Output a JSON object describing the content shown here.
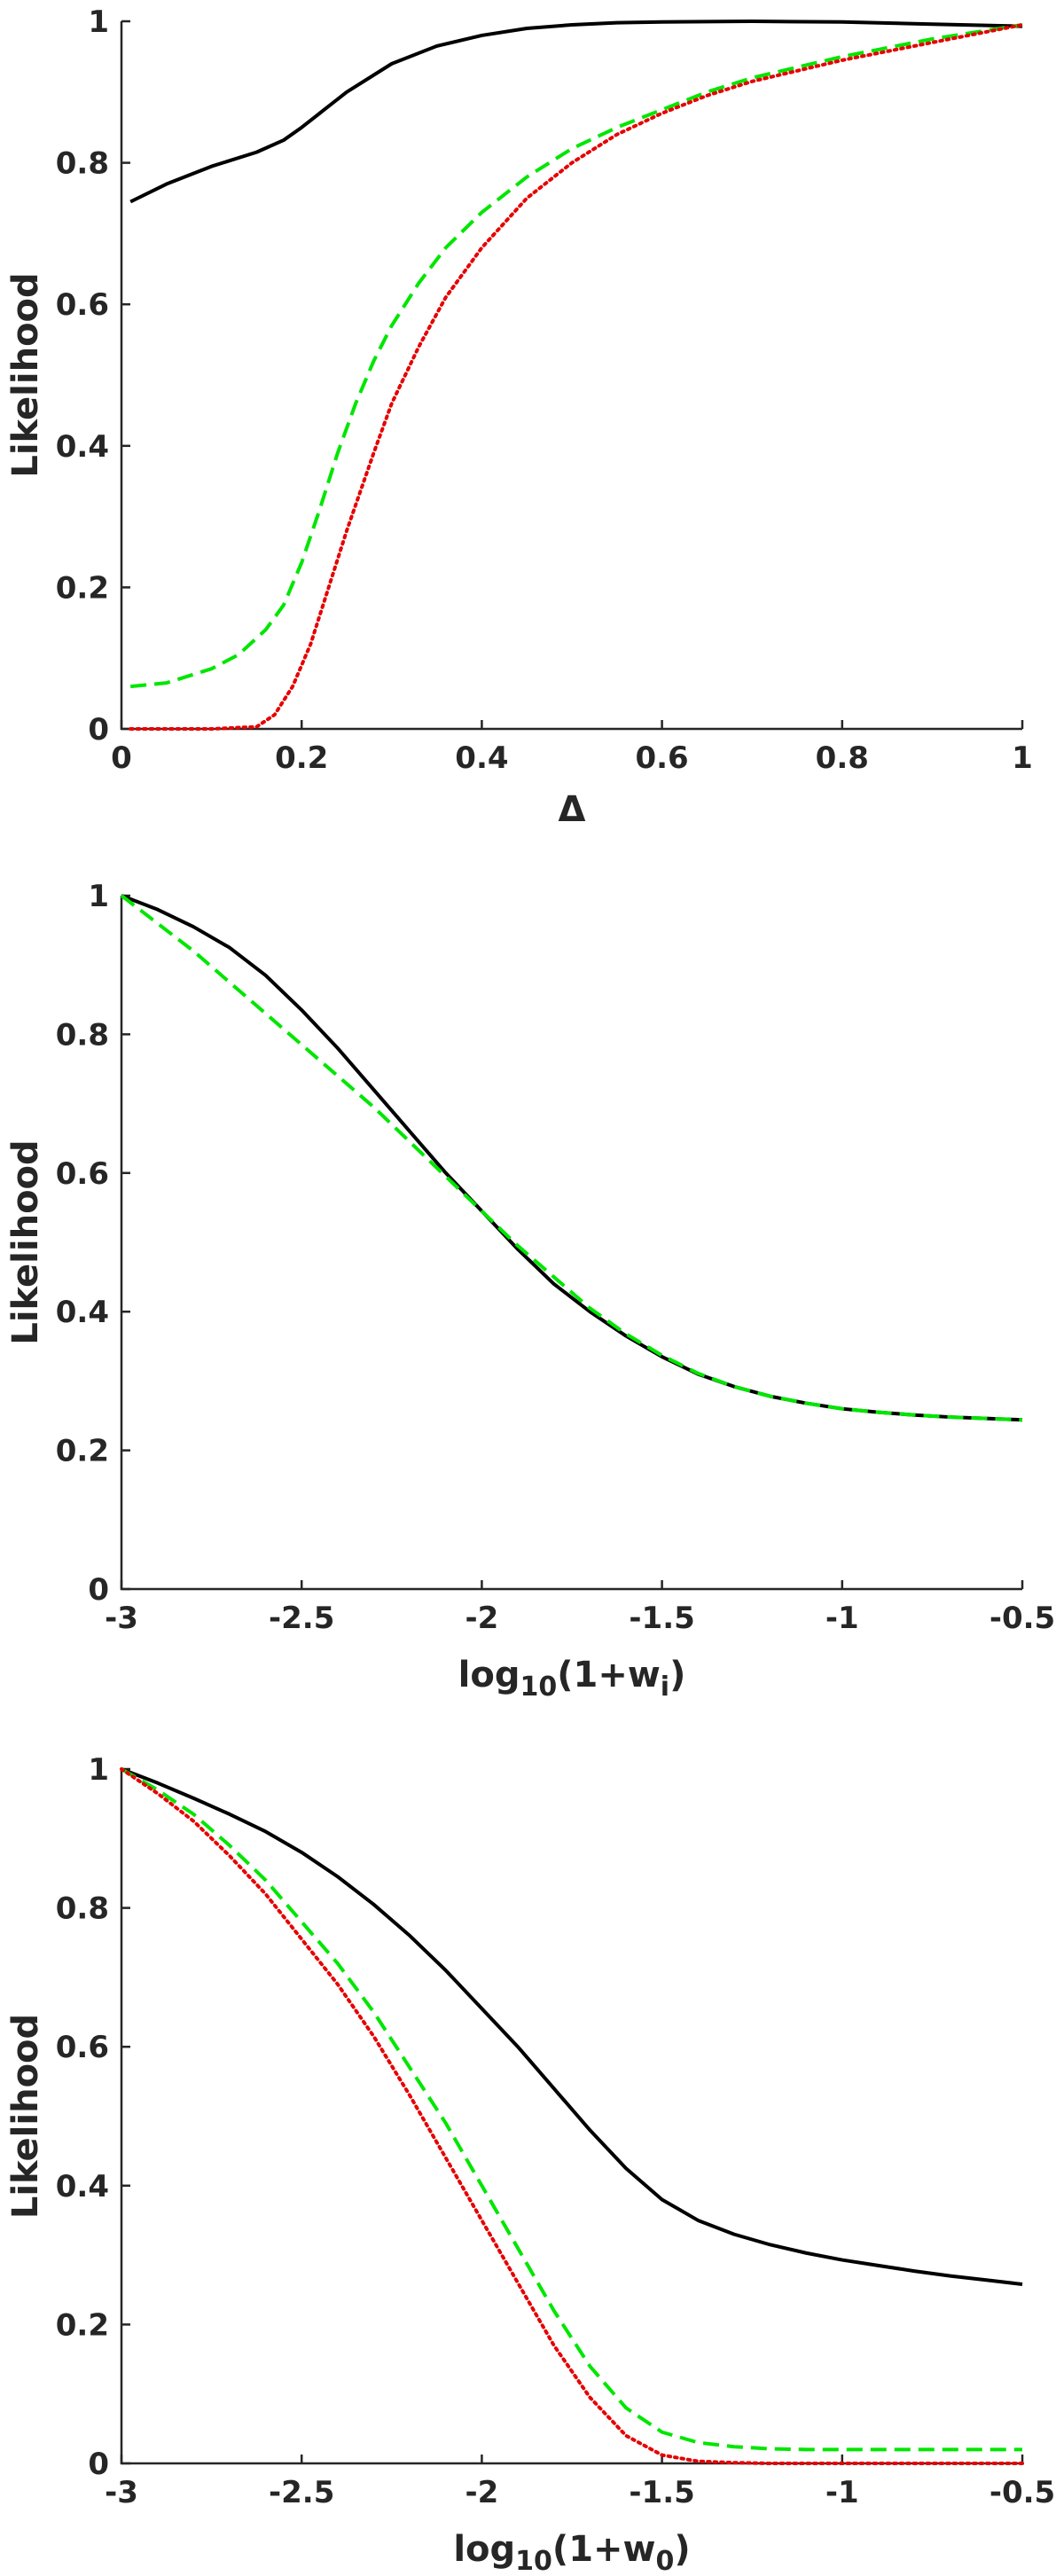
{
  "chart_data": [
    {
      "type": "line",
      "xlabel": "Δ",
      "ylabel": "Likelihood",
      "xlim": [
        0,
        1
      ],
      "ylim": [
        0,
        1
      ],
      "xticks": [
        0,
        0.2,
        0.4,
        0.6,
        0.8,
        1
      ],
      "xtick_labels": [
        "0",
        "0.2",
        "0.4",
        "0.6",
        "0.8",
        "1"
      ],
      "yticks": [
        0,
        0.2,
        0.4,
        0.6,
        0.8,
        1
      ],
      "ytick_labels": [
        "0",
        "0.2",
        "0.4",
        "0.6",
        "0.8",
        "1"
      ],
      "grid": false,
      "series": [
        {
          "style": "solid",
          "color": "#000000",
          "x": [
            0.01,
            0.05,
            0.1,
            0.15,
            0.18,
            0.2,
            0.22,
            0.25,
            0.3,
            0.35,
            0.4,
            0.45,
            0.5,
            0.55,
            0.6,
            0.7,
            0.8,
            0.9,
            1.0
          ],
          "y": [
            0.745,
            0.77,
            0.795,
            0.815,
            0.832,
            0.85,
            0.87,
            0.9,
            0.94,
            0.965,
            0.98,
            0.99,
            0.995,
            0.998,
            0.999,
            1.0,
            0.999,
            0.996,
            0.993
          ]
        },
        {
          "style": "dashed",
          "color": "#00e600",
          "x": [
            0.01,
            0.05,
            0.1,
            0.13,
            0.16,
            0.18,
            0.2,
            0.22,
            0.24,
            0.26,
            0.28,
            0.3,
            0.33,
            0.36,
            0.4,
            0.45,
            0.5,
            0.55,
            0.6,
            0.65,
            0.7,
            0.8,
            0.9,
            1.0
          ],
          "y": [
            0.06,
            0.065,
            0.085,
            0.105,
            0.14,
            0.175,
            0.235,
            0.31,
            0.39,
            0.46,
            0.52,
            0.57,
            0.63,
            0.68,
            0.73,
            0.78,
            0.82,
            0.85,
            0.875,
            0.9,
            0.92,
            0.95,
            0.975,
            0.995
          ]
        },
        {
          "style": "dotted",
          "color": "#e60000",
          "x": [
            0.01,
            0.1,
            0.15,
            0.17,
            0.19,
            0.21,
            0.23,
            0.25,
            0.28,
            0.3,
            0.33,
            0.36,
            0.4,
            0.45,
            0.5,
            0.55,
            0.6,
            0.65,
            0.7,
            0.8,
            0.9,
            1.0
          ],
          "y": [
            0,
            0,
            0.003,
            0.02,
            0.06,
            0.12,
            0.2,
            0.28,
            0.39,
            0.46,
            0.54,
            0.61,
            0.68,
            0.75,
            0.8,
            0.84,
            0.87,
            0.895,
            0.915,
            0.945,
            0.97,
            0.995
          ]
        }
      ]
    },
    {
      "type": "line",
      "xlabel_main": "log",
      "xlabel_sub": "10",
      "xlabel_mid": "(1+w",
      "xlabel_sub2": "i",
      "xlabel_end": ")",
      "ylabel": "Likelihood",
      "xlim": [
        -3,
        -0.5
      ],
      "ylim": [
        0,
        1
      ],
      "xticks": [
        -3,
        -2.5,
        -2,
        -1.5,
        -1,
        -0.5
      ],
      "xtick_labels": [
        "-3",
        "-2.5",
        "-2",
        "-1.5",
        "-1",
        "-0.5"
      ],
      "yticks": [
        0,
        0.2,
        0.4,
        0.6,
        0.8,
        1
      ],
      "ytick_labels": [
        "0",
        "0.2",
        "0.4",
        "0.6",
        "0.8",
        "1"
      ],
      "grid": false,
      "series": [
        {
          "style": "solid",
          "color": "#000000",
          "x": [
            -3,
            -2.9,
            -2.8,
            -2.7,
            -2.6,
            -2.5,
            -2.4,
            -2.3,
            -2.2,
            -2.1,
            -2.0,
            -1.9,
            -1.8,
            -1.7,
            -1.6,
            -1.5,
            -1.4,
            -1.3,
            -1.2,
            -1.1,
            -1.0,
            -0.9,
            -0.8,
            -0.7,
            -0.6,
            -0.5
          ],
          "y": [
            1.0,
            0.98,
            0.955,
            0.925,
            0.885,
            0.835,
            0.78,
            0.72,
            0.66,
            0.6,
            0.545,
            0.49,
            0.44,
            0.4,
            0.365,
            0.335,
            0.31,
            0.292,
            0.278,
            0.268,
            0.26,
            0.255,
            0.251,
            0.248,
            0.246,
            0.244
          ]
        },
        {
          "style": "dashed",
          "color": "#00e600",
          "x": [
            -3,
            -2.9,
            -2.8,
            -2.7,
            -2.6,
            -2.5,
            -2.4,
            -2.3,
            -2.2,
            -2.1,
            -2.0,
            -1.9,
            -1.8,
            -1.7,
            -1.6,
            -1.5,
            -1.4,
            -1.3,
            -1.2,
            -1.1,
            -1.0,
            -0.9,
            -0.8,
            -0.7,
            -0.6,
            -0.5
          ],
          "y": [
            1.0,
            0.96,
            0.92,
            0.875,
            0.83,
            0.785,
            0.74,
            0.695,
            0.645,
            0.595,
            0.545,
            0.495,
            0.45,
            0.405,
            0.368,
            0.337,
            0.311,
            0.292,
            0.278,
            0.268,
            0.26,
            0.255,
            0.251,
            0.248,
            0.246,
            0.244
          ]
        }
      ]
    },
    {
      "type": "line",
      "xlabel_main": "log",
      "xlabel_sub": "10",
      "xlabel_mid": "(1+w",
      "xlabel_sub2": "0",
      "xlabel_end": ")",
      "ylabel": "Likelihood",
      "xlim": [
        -3,
        -0.5
      ],
      "ylim": [
        0,
        1
      ],
      "xticks": [
        -3,
        -2.5,
        -2,
        -1.5,
        -1,
        -0.5
      ],
      "xtick_labels": [
        "-3",
        "-2.5",
        "-2",
        "-1.5",
        "-1",
        "-0.5"
      ],
      "yticks": [
        0,
        0.2,
        0.4,
        0.6,
        0.8,
        1
      ],
      "ytick_labels": [
        "0",
        "0.2",
        "0.4",
        "0.6",
        "0.8",
        "1"
      ],
      "grid": false,
      "series": [
        {
          "style": "solid",
          "color": "#000000",
          "x": [
            -3,
            -2.9,
            -2.8,
            -2.7,
            -2.6,
            -2.5,
            -2.4,
            -2.3,
            -2.2,
            -2.1,
            -2.0,
            -1.9,
            -1.8,
            -1.7,
            -1.6,
            -1.5,
            -1.4,
            -1.3,
            -1.2,
            -1.1,
            -1.0,
            -0.9,
            -0.8,
            -0.7,
            -0.6,
            -0.5
          ],
          "y": [
            1.0,
            0.98,
            0.958,
            0.935,
            0.91,
            0.88,
            0.845,
            0.805,
            0.76,
            0.71,
            0.655,
            0.6,
            0.54,
            0.48,
            0.425,
            0.38,
            0.35,
            0.33,
            0.315,
            0.303,
            0.293,
            0.285,
            0.277,
            0.27,
            0.264,
            0.258
          ]
        },
        {
          "style": "dashed",
          "color": "#00e600",
          "x": [
            -3,
            -2.9,
            -2.8,
            -2.7,
            -2.6,
            -2.5,
            -2.4,
            -2.3,
            -2.2,
            -2.1,
            -2.0,
            -1.9,
            -1.8,
            -1.7,
            -1.6,
            -1.5,
            -1.4,
            -1.3,
            -1.2,
            -1.1,
            -1.0,
            -0.9,
            -0.8,
            -0.7,
            -0.6,
            -0.5
          ],
          "y": [
            1.0,
            0.97,
            0.935,
            0.89,
            0.84,
            0.78,
            0.72,
            0.65,
            0.57,
            0.49,
            0.4,
            0.31,
            0.22,
            0.14,
            0.08,
            0.045,
            0.03,
            0.024,
            0.021,
            0.02,
            0.02,
            0.02,
            0.02,
            0.02,
            0.02,
            0.02
          ]
        },
        {
          "style": "dotted",
          "color": "#e60000",
          "x": [
            -3,
            -2.9,
            -2.8,
            -2.7,
            -2.6,
            -2.5,
            -2.4,
            -2.3,
            -2.2,
            -2.1,
            -2.0,
            -1.9,
            -1.8,
            -1.7,
            -1.6,
            -1.5,
            -1.4,
            -1.3,
            -1.2,
            -1.1,
            -1.0,
            -0.9,
            -0.8,
            -0.7,
            -0.6,
            -0.5
          ],
          "y": [
            1.0,
            0.965,
            0.925,
            0.875,
            0.82,
            0.755,
            0.69,
            0.615,
            0.53,
            0.44,
            0.35,
            0.26,
            0.17,
            0.095,
            0.04,
            0.012,
            0.003,
            0.001,
            0,
            0,
            0,
            0,
            0,
            0,
            0,
            0
          ]
        }
      ]
    }
  ]
}
